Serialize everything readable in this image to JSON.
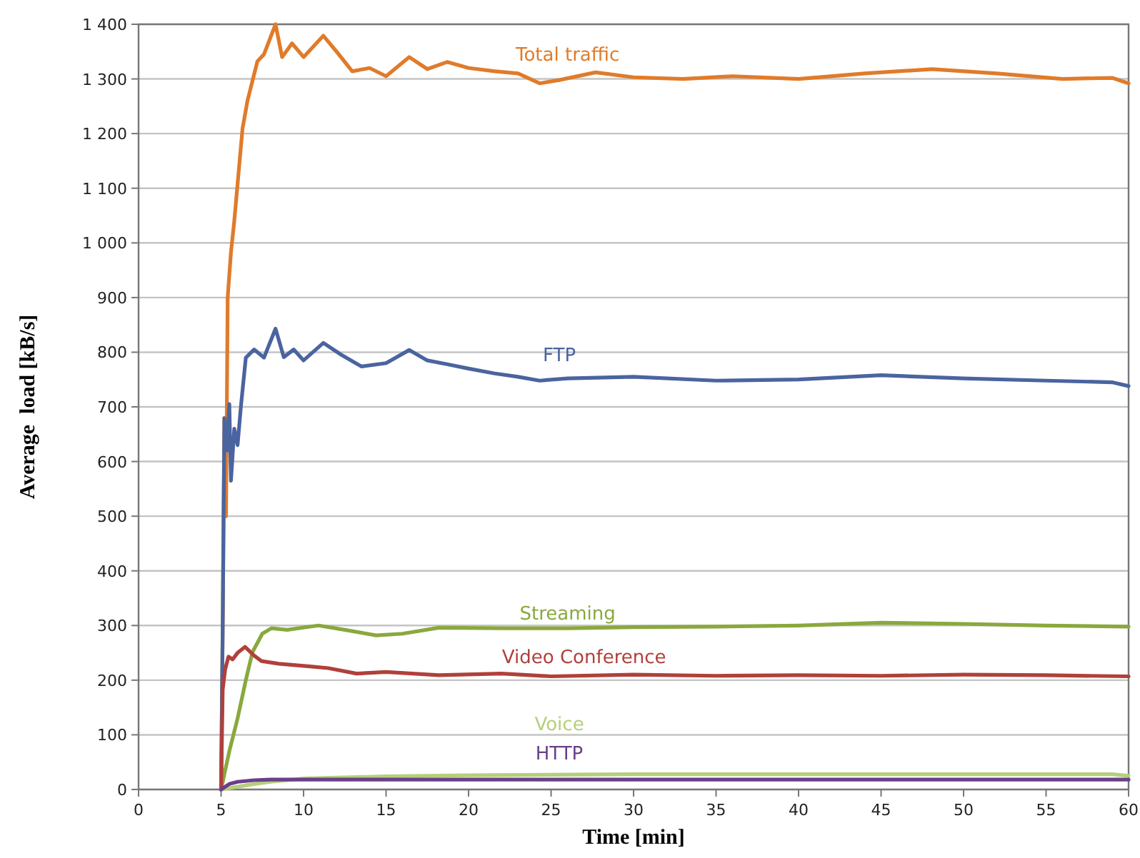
{
  "chart_data": {
    "type": "line",
    "xlabel": "Time [min]",
    "ylabel": "Average  load [kB/s]",
    "xlim": [
      0,
      60
    ],
    "xticks": [
      0,
      5,
      10,
      15,
      20,
      25,
      30,
      35,
      40,
      45,
      50,
      55,
      60
    ],
    "ylim": [
      0,
      1400
    ],
    "yticks": [
      0,
      100,
      200,
      300,
      400,
      500,
      600,
      700,
      800,
      900,
      {
        "value": 1000,
        "label": "1 000"
      },
      {
        "value": 1100,
        "label": "1 100"
      },
      {
        "value": 1200,
        "label": "1 200"
      },
      {
        "value": 1300,
        "label": "1 300"
      },
      {
        "value": 1400,
        "label": "1 400"
      }
    ],
    "grid": "y",
    "legend": false,
    "marker": "none",
    "line_style": "solid",
    "series": [
      {
        "name": "Total traffic",
        "color": "#e07b2a",
        "x": [
          5,
          5.1,
          5.2,
          5.3,
          5.4,
          5.6,
          5.8,
          6.3,
          6.6,
          7.2,
          7.6,
          8.3,
          8.7,
          9.3,
          10,
          11.2,
          12,
          12.95,
          14,
          15,
          16.4,
          17.5,
          18.7,
          20,
          21.6,
          23,
          24.3,
          25.5,
          27.7,
          30,
          33,
          36,
          40,
          44,
          48.1,
          52,
          56,
          59,
          60
        ],
        "values": [
          0,
          300,
          680,
          500,
          900,
          983,
          1040,
          1209,
          1260,
          1332,
          1345,
          1400,
          1340,
          1365,
          1340,
          1379,
          1350,
          1314,
          1320,
          1305,
          1340,
          1318,
          1331,
          1320,
          1314,
          1310,
          1292,
          1298,
          1312,
          1303,
          1300,
          1305,
          1300,
          1310,
          1318,
          1310,
          1300,
          1302,
          1292
        ]
      },
      {
        "name": "FTP",
        "color": "#4a64a0",
        "x": [
          5,
          5.1,
          5.2,
          5.35,
          5.5,
          5.6,
          5.8,
          6.0,
          6.2,
          6.5,
          7.0,
          7.6,
          8.3,
          8.8,
          9.4,
          10,
          11.2,
          12.3,
          13.5,
          15,
          16.4,
          17.5,
          18.7,
          20,
          21.6,
          23,
          24.3,
          26,
          30,
          35,
          40,
          45,
          50,
          55,
          59,
          60
        ],
        "values": [
          0,
          300,
          679,
          620,
          705,
          565,
          660,
          630,
          700,
          790,
          805,
          790,
          843,
          791,
          805,
          785,
          817,
          795,
          774,
          780,
          804,
          785,
          778,
          770,
          761,
          755,
          748,
          752,
          755,
          748,
          750,
          758,
          752,
          748,
          745,
          738
        ]
      },
      {
        "name": "Streaming",
        "color": "#8aa83e",
        "x": [
          5,
          5.5,
          6.0,
          6.5,
          6.9,
          7.5,
          8.05,
          9,
          10.9,
          12.5,
          14.4,
          16,
          18.2,
          22,
          26,
          30,
          35,
          40,
          45,
          50,
          55,
          60
        ],
        "values": [
          0,
          70,
          130,
          200,
          251,
          285,
          295,
          292,
          300,
          292,
          282,
          285,
          296,
          295,
          295,
          297,
          298,
          300,
          305,
          303,
          300,
          298
        ]
      },
      {
        "name": "Video Conference",
        "color": "#b0403a",
        "x": [
          5,
          5.1,
          5.25,
          5.45,
          5.7,
          6.0,
          6.45,
          7.0,
          7.45,
          8.5,
          10.4,
          11.5,
          13.2,
          15,
          18.2,
          22,
          25,
          30,
          35,
          40,
          45,
          50,
          55,
          60
        ],
        "values": [
          0,
          183,
          220,
          243,
          238,
          250,
          261,
          245,
          235,
          230,
          225,
          222,
          212,
          215,
          209,
          212,
          207,
          210,
          208,
          209,
          208,
          210,
          209,
          207
        ]
      },
      {
        "name": "Voice",
        "color": "#b5cf7a",
        "x": [
          5,
          6,
          7,
          8,
          10,
          15,
          20,
          30,
          40,
          50,
          59,
          60
        ],
        "values": [
          0,
          5,
          10,
          14,
          20,
          24,
          26,
          28,
          28,
          28,
          28,
          25
        ]
      },
      {
        "name": "HTTP",
        "color": "#6a3f8a",
        "x": [
          5,
          5.5,
          6,
          7,
          8,
          10,
          20,
          40,
          60
        ],
        "values": [
          0,
          10,
          14,
          17,
          18,
          18,
          18,
          18,
          18
        ]
      }
    ]
  }
}
